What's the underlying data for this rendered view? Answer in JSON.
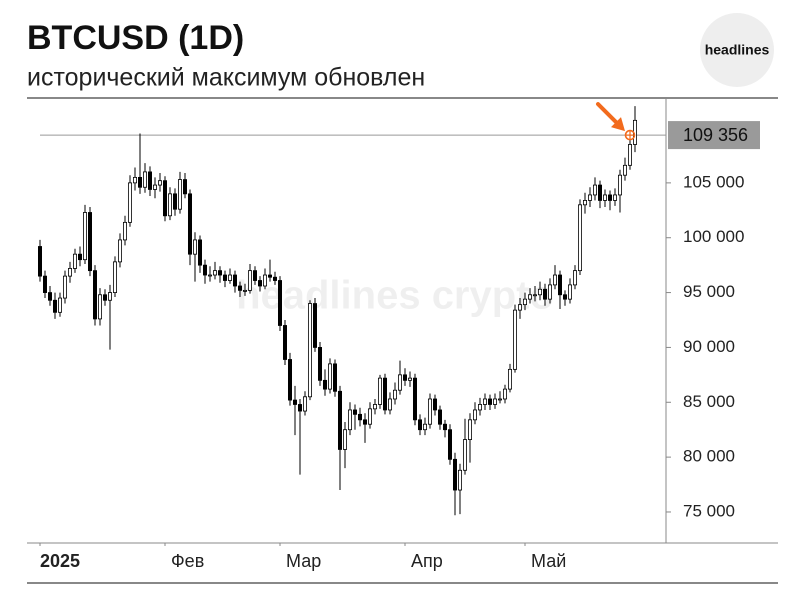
{
  "chart_data": {
    "type": "candlestick",
    "title": "BTCUSD (1D)",
    "subtitle": "исторический максимум обновлен",
    "logo": "headlines",
    "watermark": "headlines crypto",
    "up_color": "#ffffff",
    "down_color": "#000000",
    "edge_color": "#000000",
    "ylim": [
      72500,
      112500
    ],
    "yticks": [
      {
        "value": 75000,
        "label": "75 000"
      },
      {
        "value": 80000,
        "label": "80 000"
      },
      {
        "value": 85000,
        "label": "85 000"
      },
      {
        "value": 90000,
        "label": "90 000"
      },
      {
        "value": 95000,
        "label": "95 000"
      },
      {
        "value": 100000,
        "label": "100 000"
      },
      {
        "value": 105000,
        "label": "105 000"
      }
    ],
    "xticks": [
      {
        "value": 0,
        "label": "2025"
      },
      {
        "value": 25,
        "label": "Фев"
      },
      {
        "value": 48,
        "label": "Мар"
      },
      {
        "value": 73,
        "label": "Апр"
      },
      {
        "value": 97,
        "label": "Май"
      }
    ],
    "hline": {
      "value": 109356,
      "label": "109 356",
      "color": "#f26b1d"
    },
    "candles": [
      [
        99200,
        99800,
        96000,
        96500
      ],
      [
        96500,
        97000,
        94500,
        95000
      ],
      [
        95000,
        95600,
        93800,
        94300
      ],
      [
        94300,
        95000,
        92600,
        93200
      ],
      [
        93200,
        95000,
        92800,
        94500
      ],
      [
        94500,
        97000,
        94000,
        96500
      ],
      [
        96500,
        97800,
        95900,
        97200
      ],
      [
        97200,
        99000,
        96800,
        98500
      ],
      [
        98500,
        99200,
        97400,
        98000
      ],
      [
        98000,
        103000,
        97600,
        102300
      ],
      [
        102300,
        102800,
        96500,
        97000
      ],
      [
        97000,
        97500,
        92000,
        92600
      ],
      [
        92600,
        95400,
        92000,
        94800
      ],
      [
        94800,
        95300,
        93800,
        94300
      ],
      [
        94300,
        95700,
        89800,
        95000
      ],
      [
        95000,
        98300,
        94600,
        97800
      ],
      [
        97800,
        100400,
        97300,
        99800
      ],
      [
        99800,
        102000,
        99300,
        101400
      ],
      [
        101400,
        105700,
        101000,
        105000
      ],
      [
        105000,
        106400,
        104300,
        105500
      ],
      [
        105500,
        109500,
        104000,
        104600
      ],
      [
        104600,
        106800,
        104100,
        106000
      ],
      [
        106000,
        106500,
        103800,
        104400
      ],
      [
        104400,
        105500,
        103600,
        104800
      ],
      [
        104800,
        105900,
        104200,
        105200
      ],
      [
        105200,
        105600,
        101500,
        102000
      ],
      [
        102000,
        104600,
        101600,
        104000
      ],
      [
        104000,
        104500,
        102000,
        102600
      ],
      [
        102600,
        106000,
        102200,
        105300
      ],
      [
        105300,
        105900,
        103600,
        104000
      ],
      [
        104000,
        104400,
        97500,
        98500
      ],
      [
        98500,
        100500,
        96000,
        99800
      ],
      [
        99800,
        100200,
        96800,
        97500
      ],
      [
        97500,
        98000,
        95800,
        96600
      ],
      [
        96600,
        97400,
        96000,
        96600
      ],
      [
        96600,
        97800,
        96200,
        97000
      ],
      [
        97000,
        97400,
        95900,
        96600
      ],
      [
        96600,
        97000,
        95500,
        96100
      ],
      [
        96100,
        97200,
        95800,
        96600
      ],
      [
        96600,
        97000,
        95000,
        95600
      ],
      [
        95600,
        96000,
        94600,
        95200
      ],
      [
        95200,
        95800,
        94700,
        95200
      ],
      [
        95200,
        97600,
        94900,
        97000
      ],
      [
        97000,
        97400,
        95700,
        96100
      ],
      [
        96100,
        96500,
        95100,
        95600
      ],
      [
        95600,
        97200,
        95300,
        96600
      ],
      [
        96600,
        98000,
        96000,
        96400
      ],
      [
        96400,
        96900,
        95700,
        96100
      ],
      [
        96100,
        96500,
        91500,
        92000
      ],
      [
        92000,
        92500,
        88400,
        88900
      ],
      [
        88900,
        89500,
        84700,
        85200
      ],
      [
        85200,
        86500,
        82000,
        84800
      ],
      [
        84800,
        85300,
        78400,
        84200
      ],
      [
        84200,
        86000,
        83800,
        85500
      ],
      [
        85500,
        94300,
        85200,
        94000
      ],
      [
        94000,
        94500,
        89600,
        90000
      ],
      [
        90000,
        90500,
        86500,
        87000
      ],
      [
        87000,
        88000,
        85600,
        86200
      ],
      [
        86200,
        89000,
        85800,
        88500
      ],
      [
        88500,
        88900,
        85500,
        86000
      ],
      [
        86000,
        86500,
        77000,
        80700
      ],
      [
        80700,
        83200,
        79000,
        82500
      ],
      [
        82500,
        85000,
        82000,
        84300
      ],
      [
        84300,
        84800,
        82500,
        83900
      ],
      [
        83900,
        84500,
        82800,
        83400
      ],
      [
        83400,
        84000,
        81300,
        83000
      ],
      [
        83000,
        85000,
        82600,
        84400
      ],
      [
        84400,
        85300,
        83900,
        84800
      ],
      [
        84800,
        87500,
        84400,
        87200
      ],
      [
        87200,
        87600,
        83900,
        84300
      ],
      [
        84300,
        85900,
        83900,
        85300
      ],
      [
        85300,
        86800,
        84800,
        86100
      ],
      [
        86100,
        88800,
        85700,
        87500
      ],
      [
        87500,
        88100,
        86500,
        87000
      ],
      [
        87000,
        87800,
        86400,
        87200
      ],
      [
        87200,
        87600,
        82900,
        83400
      ],
      [
        83400,
        83900,
        82000,
        82500
      ],
      [
        82500,
        83600,
        82000,
        83000
      ],
      [
        83000,
        85800,
        82600,
        85300
      ],
      [
        85300,
        85700,
        83800,
        84300
      ],
      [
        84300,
        84700,
        82500,
        83000
      ],
      [
        83000,
        83400,
        81800,
        82500
      ],
      [
        82500,
        83000,
        79300,
        79800
      ],
      [
        79800,
        80400,
        74700,
        77000
      ],
      [
        77000,
        79400,
        74800,
        78800
      ],
      [
        78800,
        83500,
        78400,
        81600
      ],
      [
        81600,
        84000,
        79500,
        83400
      ],
      [
        83400,
        85000,
        83000,
        84300
      ],
      [
        84300,
        85400,
        83800,
        84800
      ],
      [
        84800,
        85800,
        84300,
        85300
      ],
      [
        85300,
        85700,
        84300,
        84800
      ],
      [
        84800,
        85800,
        84400,
        85300
      ],
      [
        85300,
        86000,
        84900,
        85300
      ],
      [
        85300,
        86600,
        84900,
        86200
      ],
      [
        86200,
        88500,
        85900,
        88000
      ],
      [
        88000,
        93900,
        87700,
        93400
      ],
      [
        93400,
        94500,
        92600,
        93900
      ],
      [
        93900,
        95000,
        93400,
        94400
      ],
      [
        94400,
        95400,
        94000,
        94800
      ],
      [
        94800,
        95600,
        94200,
        94800
      ],
      [
        94800,
        96000,
        94300,
        95300
      ],
      [
        95300,
        95800,
        93800,
        94400
      ],
      [
        94400,
        96300,
        94000,
        95700
      ],
      [
        95700,
        97500,
        95300,
        96600
      ],
      [
        96600,
        97000,
        93500,
        94800
      ],
      [
        94800,
        95200,
        93800,
        94400
      ],
      [
        94400,
        96300,
        94000,
        95700
      ],
      [
        95700,
        97500,
        95300,
        97000
      ],
      [
        97000,
        103500,
        96600,
        103000
      ],
      [
        103000,
        104100,
        102200,
        103400
      ],
      [
        103400,
        104600,
        102800,
        103900
      ],
      [
        103900,
        105500,
        103400,
        104800
      ],
      [
        104800,
        105200,
        102700,
        103400
      ],
      [
        103400,
        104400,
        102800,
        103900
      ],
      [
        103900,
        104300,
        102500,
        103400
      ],
      [
        103400,
        104500,
        102900,
        103900
      ],
      [
        103900,
        106200,
        102300,
        105700
      ],
      [
        105700,
        107300,
        105200,
        106600
      ],
      [
        106600,
        109300,
        106200,
        108500
      ],
      [
        108500,
        112000,
        107800,
        110700
      ]
    ]
  }
}
